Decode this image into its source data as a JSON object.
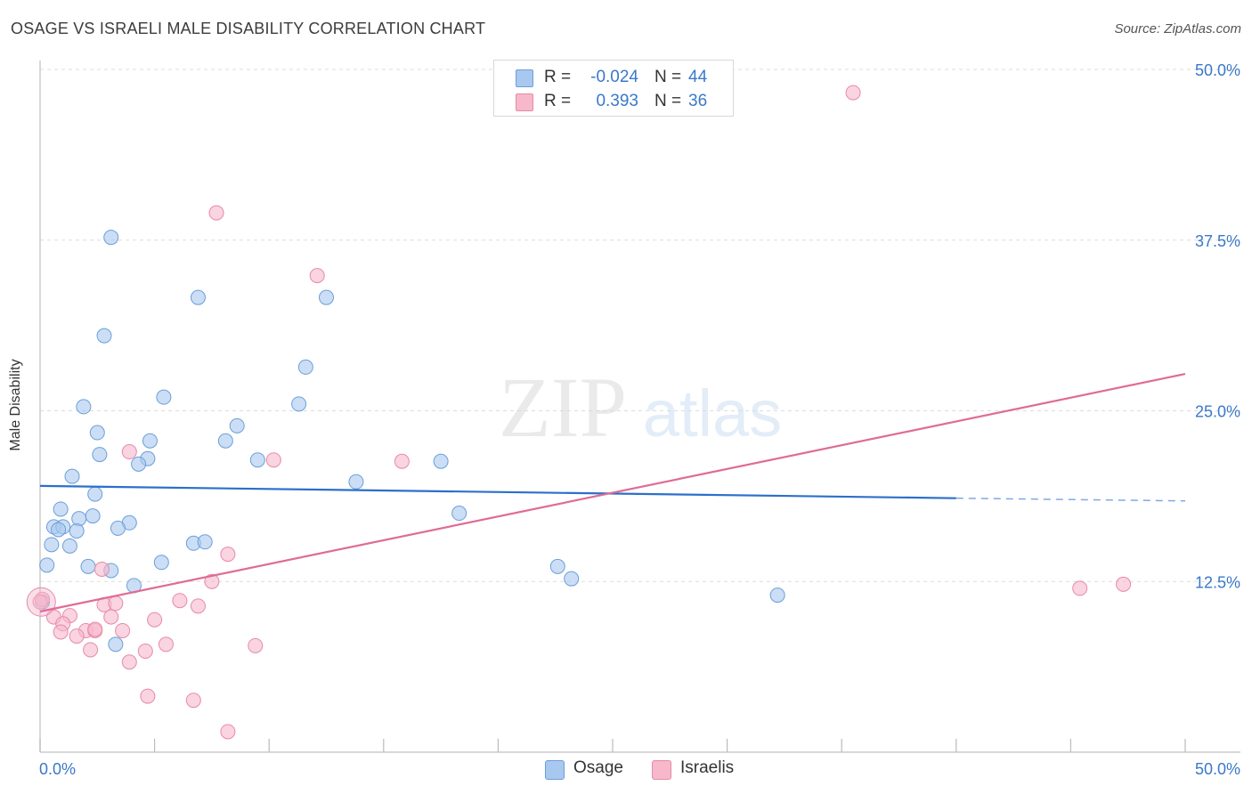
{
  "title": "OSAGE VS ISRAELI MALE DISABILITY CORRELATION CHART",
  "source": "Source: ZipAtlas.com",
  "watermark": {
    "zip": "ZIP",
    "atlas": "atlas"
  },
  "colors": {
    "osage_fill": "#a8c8f0",
    "osage_stroke": "#6a9fd8",
    "osage_line": "#2c6fcb",
    "israeli_fill": "#f7b8cc",
    "israeli_stroke": "#e68aa8",
    "israeli_line": "#e06b95",
    "tick_label": "#3a78c9",
    "grid": "#dddddd"
  },
  "legend_top": [
    {
      "r_label": "R =",
      "r_value": "-0.024",
      "n_label": "N =",
      "n_value": "44",
      "color": "#a8c8f0",
      "border": "#6a9fd8"
    },
    {
      "r_label": "R =",
      "r_value": "0.393",
      "n_label": "N =",
      "n_value": "36",
      "color": "#f7b8cc",
      "border": "#e68aa8"
    }
  ],
  "legend_bottom": [
    {
      "label": "Osage",
      "color": "#a8c8f0",
      "border": "#6a9fd8"
    },
    {
      "label": "Israelis",
      "color": "#f7b8cc",
      "border": "#e68aa8"
    }
  ],
  "chart_data": {
    "type": "scatter",
    "title": "OSAGE VS ISRAELI MALE DISABILITY CORRELATION CHART",
    "xlabel": "",
    "ylabel": "Male Disability",
    "xlim": [
      0,
      50
    ],
    "ylim": [
      0,
      50
    ],
    "x_tick_labels": [
      "0.0%",
      "50.0%"
    ],
    "y_ticks": [
      12.5,
      25.0,
      37.5,
      50.0
    ],
    "y_tick_labels": [
      "12.5%",
      "25.0%",
      "37.5%",
      "50.0%"
    ],
    "grid": true,
    "legend_position": "top-center",
    "series": [
      {
        "name": "Osage",
        "r": -0.024,
        "n": 44,
        "trend": {
          "x0": 0.0,
          "y0": 19.5,
          "x1": 40.0,
          "y1": 18.6,
          "dashed_to_x": 50.0,
          "dashed_to_y": 18.4
        },
        "points": [
          [
            3.1,
            37.7
          ],
          [
            6.9,
            33.3
          ],
          [
            12.5,
            33.3
          ],
          [
            2.8,
            30.5
          ],
          [
            11.6,
            28.2
          ],
          [
            5.4,
            26.0
          ],
          [
            1.9,
            25.3
          ],
          [
            11.3,
            25.5
          ],
          [
            8.6,
            23.9
          ],
          [
            2.5,
            23.4
          ],
          [
            4.8,
            22.8
          ],
          [
            8.1,
            22.8
          ],
          [
            2.6,
            21.8
          ],
          [
            4.7,
            21.5
          ],
          [
            9.5,
            21.4
          ],
          [
            4.3,
            21.1
          ],
          [
            17.5,
            21.3
          ],
          [
            1.4,
            20.2
          ],
          [
            13.8,
            19.8
          ],
          [
            2.4,
            18.9
          ],
          [
            0.9,
            17.8
          ],
          [
            2.3,
            17.3
          ],
          [
            1.7,
            17.1
          ],
          [
            18.3,
            17.5
          ],
          [
            0.6,
            16.5
          ],
          [
            1.0,
            16.5
          ],
          [
            0.8,
            16.3
          ],
          [
            1.6,
            16.2
          ],
          [
            3.9,
            16.8
          ],
          [
            3.4,
            16.4
          ],
          [
            0.5,
            15.2
          ],
          [
            1.3,
            15.1
          ],
          [
            6.7,
            15.3
          ],
          [
            7.2,
            15.4
          ],
          [
            0.3,
            13.7
          ],
          [
            2.1,
            13.6
          ],
          [
            3.1,
            13.3
          ],
          [
            5.3,
            13.9
          ],
          [
            22.6,
            13.6
          ],
          [
            23.2,
            12.7
          ],
          [
            4.1,
            12.2
          ],
          [
            32.2,
            11.5
          ],
          [
            0.1,
            11.0
          ],
          [
            3.3,
            7.9
          ]
        ]
      },
      {
        "name": "Israelis",
        "r": 0.393,
        "n": 36,
        "trend": {
          "x0": 0.0,
          "y0": 10.3,
          "x1": 50.0,
          "y1": 27.7
        },
        "points": [
          [
            35.5,
            48.3
          ],
          [
            7.7,
            39.5
          ],
          [
            12.1,
            34.9
          ],
          [
            3.9,
            22.0
          ],
          [
            10.2,
            21.4
          ],
          [
            15.8,
            21.3
          ],
          [
            8.2,
            14.5
          ],
          [
            2.7,
            13.4
          ],
          [
            7.5,
            12.5
          ],
          [
            0.1,
            11.2
          ],
          [
            6.1,
            11.1
          ],
          [
            2.8,
            10.8
          ],
          [
            3.3,
            10.9
          ],
          [
            6.9,
            10.7
          ],
          [
            1.3,
            10.0
          ],
          [
            0.6,
            9.9
          ],
          [
            3.1,
            9.9
          ],
          [
            5.0,
            9.7
          ],
          [
            1.0,
            9.4
          ],
          [
            0.9,
            8.8
          ],
          [
            2.0,
            8.9
          ],
          [
            2.4,
            8.9
          ],
          [
            2.4,
            9.0
          ],
          [
            3.6,
            8.9
          ],
          [
            1.6,
            8.5
          ],
          [
            2.2,
            7.5
          ],
          [
            5.5,
            7.9
          ],
          [
            9.4,
            7.8
          ],
          [
            4.6,
            7.4
          ],
          [
            3.9,
            6.6
          ],
          [
            47.3,
            12.3
          ],
          [
            45.4,
            12.0
          ],
          [
            4.7,
            4.1
          ],
          [
            6.7,
            3.8
          ],
          [
            8.2,
            1.5
          ],
          [
            0.0,
            11.0
          ]
        ]
      }
    ]
  }
}
